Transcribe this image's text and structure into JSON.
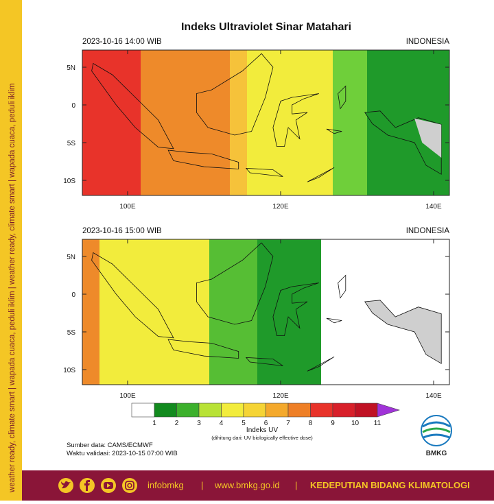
{
  "title": "Indeks Ultraviolet Sinar Matahari",
  "panels": [
    {
      "datetime": "2023-10-16  14:00 WIB",
      "region": "INDONESIA"
    },
    {
      "datetime": "2023-10-16  15:00 WIB",
      "region": "INDONESIA"
    }
  ],
  "lat_labels": [
    "5N",
    "0",
    "5S",
    "10S"
  ],
  "lon_labels": [
    "100E",
    "120E",
    "140E"
  ],
  "colorbar": {
    "labels": [
      1,
      2,
      3,
      4,
      5,
      6,
      7,
      8,
      9,
      10,
      11
    ],
    "title": "Indeks UV",
    "note": "(dihitung dari: UV biologically effective dose)"
  },
  "source": "Sumber data: CAMS/ECMWF",
  "validity": "Waktu validasi: 2023-10-15 07:00 WIB",
  "logo_text": "BMKG",
  "side_text": "weather ready, climate smart  |  wapada cuaca, peduli iklim  |  weather ready, climate smart  |  wapada cuaca, peduli iklim",
  "footer": {
    "handle": "infobmkg",
    "separator": "|",
    "website": "www.bmkg.go.id",
    "department": "KEDEPUTIAN BIDANG KLIMATOLOGI"
  }
}
